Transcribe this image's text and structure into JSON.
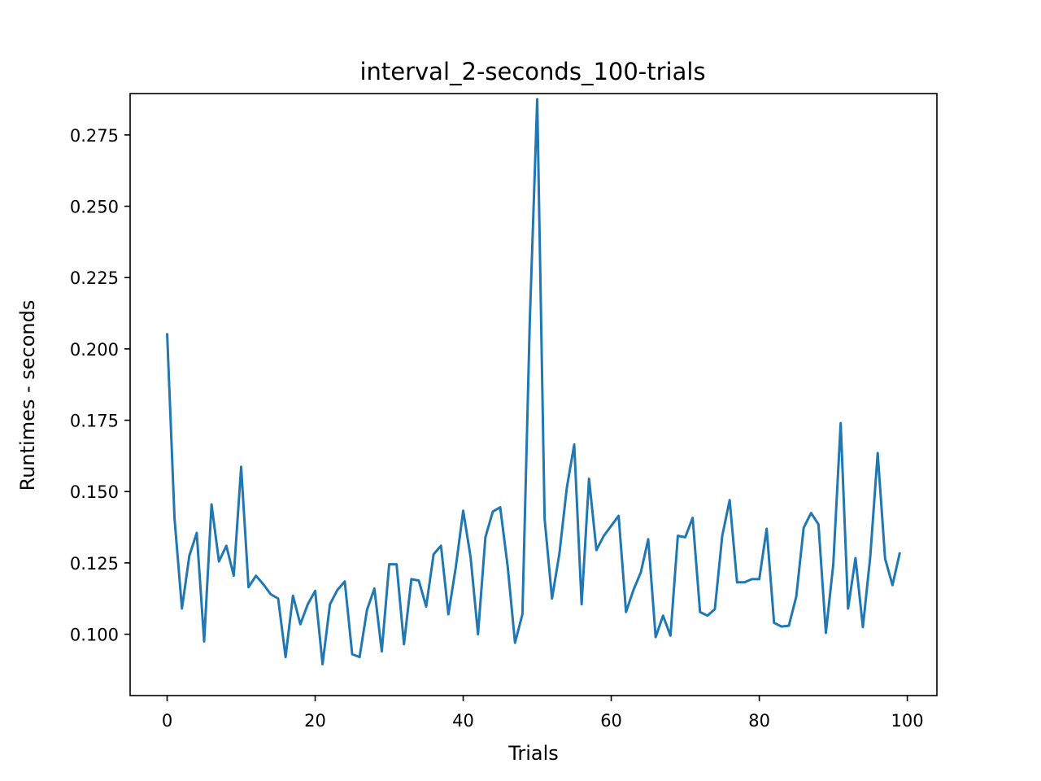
{
  "chart_data": {
    "type": "line",
    "title": "interval_2-seconds_100-trials",
    "xlabel": "Trials",
    "ylabel": "Runtimes - seconds",
    "xlim": [
      -5,
      104
    ],
    "ylim": [
      0.0785,
      0.2895
    ],
    "xticks": [
      0,
      20,
      40,
      60,
      80,
      100
    ],
    "yticks": [
      0.1,
      0.125,
      0.15,
      0.175,
      0.2,
      0.225,
      0.25,
      0.275
    ],
    "xtick_labels": [
      "0",
      "20",
      "40",
      "60",
      "80",
      "100"
    ],
    "ytick_labels": [
      "0.100",
      "0.125",
      "0.150",
      "0.175",
      "0.200",
      "0.225",
      "0.250",
      "0.275"
    ],
    "grid": false,
    "line_color": "#1f77b4",
    "series": [
      {
        "x": [
          0,
          1,
          2,
          3,
          4,
          5,
          6,
          7,
          8,
          9,
          10,
          11,
          12,
          13,
          14,
          15,
          16,
          17,
          18,
          19,
          20,
          21,
          22,
          23,
          24,
          25,
          26,
          27,
          28,
          29,
          30,
          31,
          32,
          33,
          34,
          35,
          36,
          37,
          38,
          39,
          40,
          41,
          42,
          43,
          44,
          45,
          46,
          47,
          48,
          49,
          50,
          51,
          52,
          53,
          54,
          55,
          56,
          57,
          58,
          59,
          60,
          61,
          62,
          63,
          64,
          65,
          66,
          67,
          68,
          69,
          70,
          71,
          72,
          73,
          74,
          75,
          76,
          77,
          78,
          79,
          80,
          81,
          82,
          83,
          84,
          85,
          86,
          87,
          88,
          89,
          90,
          91,
          92,
          93,
          94,
          95,
          96,
          97,
          98,
          99
        ],
        "values": [
          0.2055,
          0.1405,
          0.109,
          0.1275,
          0.1355,
          0.0975,
          0.1455,
          0.1255,
          0.131,
          0.1205,
          0.1587,
          0.1165,
          0.1205,
          0.1175,
          0.114,
          0.1125,
          0.092,
          0.1135,
          0.1035,
          0.1105,
          0.1152,
          0.0895,
          0.1105,
          0.1155,
          0.1185,
          0.093,
          0.092,
          0.1085,
          0.116,
          0.094,
          0.1245,
          0.1245,
          0.0965,
          0.1193,
          0.1188,
          0.1097,
          0.128,
          0.131,
          0.107,
          0.1235,
          0.1433,
          0.127,
          0.1,
          0.134,
          0.143,
          0.1445,
          0.124,
          0.097,
          0.107,
          0.21,
          0.2875,
          0.1405,
          0.1125,
          0.1283,
          0.1513,
          0.1665,
          0.1105,
          0.1545,
          0.1295,
          0.1345,
          0.138,
          0.1415,
          0.1078,
          0.1155,
          0.1217,
          0.1333,
          0.099,
          0.1065,
          0.0995,
          0.1345,
          0.134,
          0.1408,
          0.1078,
          0.1065,
          0.1088,
          0.1345,
          0.147,
          0.1182,
          0.1182,
          0.1193,
          0.1193,
          0.137,
          0.104,
          0.1027,
          0.103,
          0.1132,
          0.1373,
          0.1425,
          0.1385,
          0.1005,
          0.1245,
          0.174,
          0.109,
          0.1267,
          0.1025,
          0.1273,
          0.1635,
          0.1265,
          0.1172,
          0.1287
        ]
      }
    ]
  }
}
